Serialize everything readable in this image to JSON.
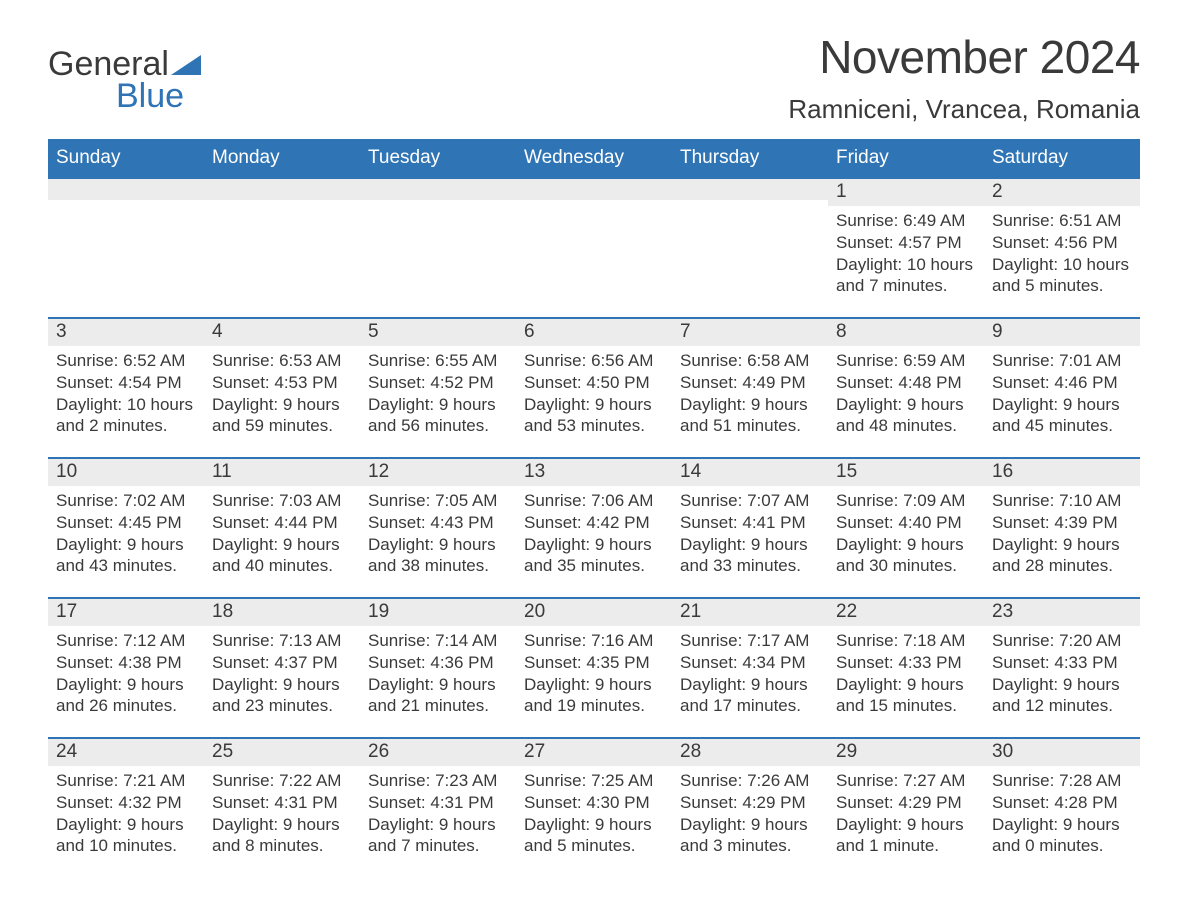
{
  "logo": {
    "word1": "General",
    "word2": "Blue",
    "accent_color": "#2f74b5"
  },
  "title": "November 2024",
  "location": "Ramniceni, Vrancea, Romania",
  "colors": {
    "header_bg": "#2f74b5",
    "header_text": "#ffffff",
    "daynum_bg": "#ececec",
    "daynum_border": "#2f74b5",
    "body_text": "#3a3a3a",
    "page_bg": "#ffffff"
  },
  "typography": {
    "title_fontsize": 46,
    "location_fontsize": 26,
    "header_fontsize": 19,
    "daynum_fontsize": 19,
    "body_fontsize": 17,
    "font_family": "Arial"
  },
  "day_headers": [
    "Sunday",
    "Monday",
    "Tuesday",
    "Wednesday",
    "Thursday",
    "Friday",
    "Saturday"
  ],
  "weeks": [
    [
      {
        "day": "",
        "sunrise": "",
        "sunset": "",
        "daylight": ""
      },
      {
        "day": "",
        "sunrise": "",
        "sunset": "",
        "daylight": ""
      },
      {
        "day": "",
        "sunrise": "",
        "sunset": "",
        "daylight": ""
      },
      {
        "day": "",
        "sunrise": "",
        "sunset": "",
        "daylight": ""
      },
      {
        "day": "",
        "sunrise": "",
        "sunset": "",
        "daylight": ""
      },
      {
        "day": "1",
        "sunrise": "Sunrise: 6:49 AM",
        "sunset": "Sunset: 4:57 PM",
        "daylight": "Daylight: 10 hours and 7 minutes."
      },
      {
        "day": "2",
        "sunrise": "Sunrise: 6:51 AM",
        "sunset": "Sunset: 4:56 PM",
        "daylight": "Daylight: 10 hours and 5 minutes."
      }
    ],
    [
      {
        "day": "3",
        "sunrise": "Sunrise: 6:52 AM",
        "sunset": "Sunset: 4:54 PM",
        "daylight": "Daylight: 10 hours and 2 minutes."
      },
      {
        "day": "4",
        "sunrise": "Sunrise: 6:53 AM",
        "sunset": "Sunset: 4:53 PM",
        "daylight": "Daylight: 9 hours and 59 minutes."
      },
      {
        "day": "5",
        "sunrise": "Sunrise: 6:55 AM",
        "sunset": "Sunset: 4:52 PM",
        "daylight": "Daylight: 9 hours and 56 minutes."
      },
      {
        "day": "6",
        "sunrise": "Sunrise: 6:56 AM",
        "sunset": "Sunset: 4:50 PM",
        "daylight": "Daylight: 9 hours and 53 minutes."
      },
      {
        "day": "7",
        "sunrise": "Sunrise: 6:58 AM",
        "sunset": "Sunset: 4:49 PM",
        "daylight": "Daylight: 9 hours and 51 minutes."
      },
      {
        "day": "8",
        "sunrise": "Sunrise: 6:59 AM",
        "sunset": "Sunset: 4:48 PM",
        "daylight": "Daylight: 9 hours and 48 minutes."
      },
      {
        "day": "9",
        "sunrise": "Sunrise: 7:01 AM",
        "sunset": "Sunset: 4:46 PM",
        "daylight": "Daylight: 9 hours and 45 minutes."
      }
    ],
    [
      {
        "day": "10",
        "sunrise": "Sunrise: 7:02 AM",
        "sunset": "Sunset: 4:45 PM",
        "daylight": "Daylight: 9 hours and 43 minutes."
      },
      {
        "day": "11",
        "sunrise": "Sunrise: 7:03 AM",
        "sunset": "Sunset: 4:44 PM",
        "daylight": "Daylight: 9 hours and 40 minutes."
      },
      {
        "day": "12",
        "sunrise": "Sunrise: 7:05 AM",
        "sunset": "Sunset: 4:43 PM",
        "daylight": "Daylight: 9 hours and 38 minutes."
      },
      {
        "day": "13",
        "sunrise": "Sunrise: 7:06 AM",
        "sunset": "Sunset: 4:42 PM",
        "daylight": "Daylight: 9 hours and 35 minutes."
      },
      {
        "day": "14",
        "sunrise": "Sunrise: 7:07 AM",
        "sunset": "Sunset: 4:41 PM",
        "daylight": "Daylight: 9 hours and 33 minutes."
      },
      {
        "day": "15",
        "sunrise": "Sunrise: 7:09 AM",
        "sunset": "Sunset: 4:40 PM",
        "daylight": "Daylight: 9 hours and 30 minutes."
      },
      {
        "day": "16",
        "sunrise": "Sunrise: 7:10 AM",
        "sunset": "Sunset: 4:39 PM",
        "daylight": "Daylight: 9 hours and 28 minutes."
      }
    ],
    [
      {
        "day": "17",
        "sunrise": "Sunrise: 7:12 AM",
        "sunset": "Sunset: 4:38 PM",
        "daylight": "Daylight: 9 hours and 26 minutes."
      },
      {
        "day": "18",
        "sunrise": "Sunrise: 7:13 AM",
        "sunset": "Sunset: 4:37 PM",
        "daylight": "Daylight: 9 hours and 23 minutes."
      },
      {
        "day": "19",
        "sunrise": "Sunrise: 7:14 AM",
        "sunset": "Sunset: 4:36 PM",
        "daylight": "Daylight: 9 hours and 21 minutes."
      },
      {
        "day": "20",
        "sunrise": "Sunrise: 7:16 AM",
        "sunset": "Sunset: 4:35 PM",
        "daylight": "Daylight: 9 hours and 19 minutes."
      },
      {
        "day": "21",
        "sunrise": "Sunrise: 7:17 AM",
        "sunset": "Sunset: 4:34 PM",
        "daylight": "Daylight: 9 hours and 17 minutes."
      },
      {
        "day": "22",
        "sunrise": "Sunrise: 7:18 AM",
        "sunset": "Sunset: 4:33 PM",
        "daylight": "Daylight: 9 hours and 15 minutes."
      },
      {
        "day": "23",
        "sunrise": "Sunrise: 7:20 AM",
        "sunset": "Sunset: 4:33 PM",
        "daylight": "Daylight: 9 hours and 12 minutes."
      }
    ],
    [
      {
        "day": "24",
        "sunrise": "Sunrise: 7:21 AM",
        "sunset": "Sunset: 4:32 PM",
        "daylight": "Daylight: 9 hours and 10 minutes."
      },
      {
        "day": "25",
        "sunrise": "Sunrise: 7:22 AM",
        "sunset": "Sunset: 4:31 PM",
        "daylight": "Daylight: 9 hours and 8 minutes."
      },
      {
        "day": "26",
        "sunrise": "Sunrise: 7:23 AM",
        "sunset": "Sunset: 4:31 PM",
        "daylight": "Daylight: 9 hours and 7 minutes."
      },
      {
        "day": "27",
        "sunrise": "Sunrise: 7:25 AM",
        "sunset": "Sunset: 4:30 PM",
        "daylight": "Daylight: 9 hours and 5 minutes."
      },
      {
        "day": "28",
        "sunrise": "Sunrise: 7:26 AM",
        "sunset": "Sunset: 4:29 PM",
        "daylight": "Daylight: 9 hours and 3 minutes."
      },
      {
        "day": "29",
        "sunrise": "Sunrise: 7:27 AM",
        "sunset": "Sunset: 4:29 PM",
        "daylight": "Daylight: 9 hours and 1 minute."
      },
      {
        "day": "30",
        "sunrise": "Sunrise: 7:28 AM",
        "sunset": "Sunset: 4:28 PM",
        "daylight": "Daylight: 9 hours and 0 minutes."
      }
    ]
  ]
}
